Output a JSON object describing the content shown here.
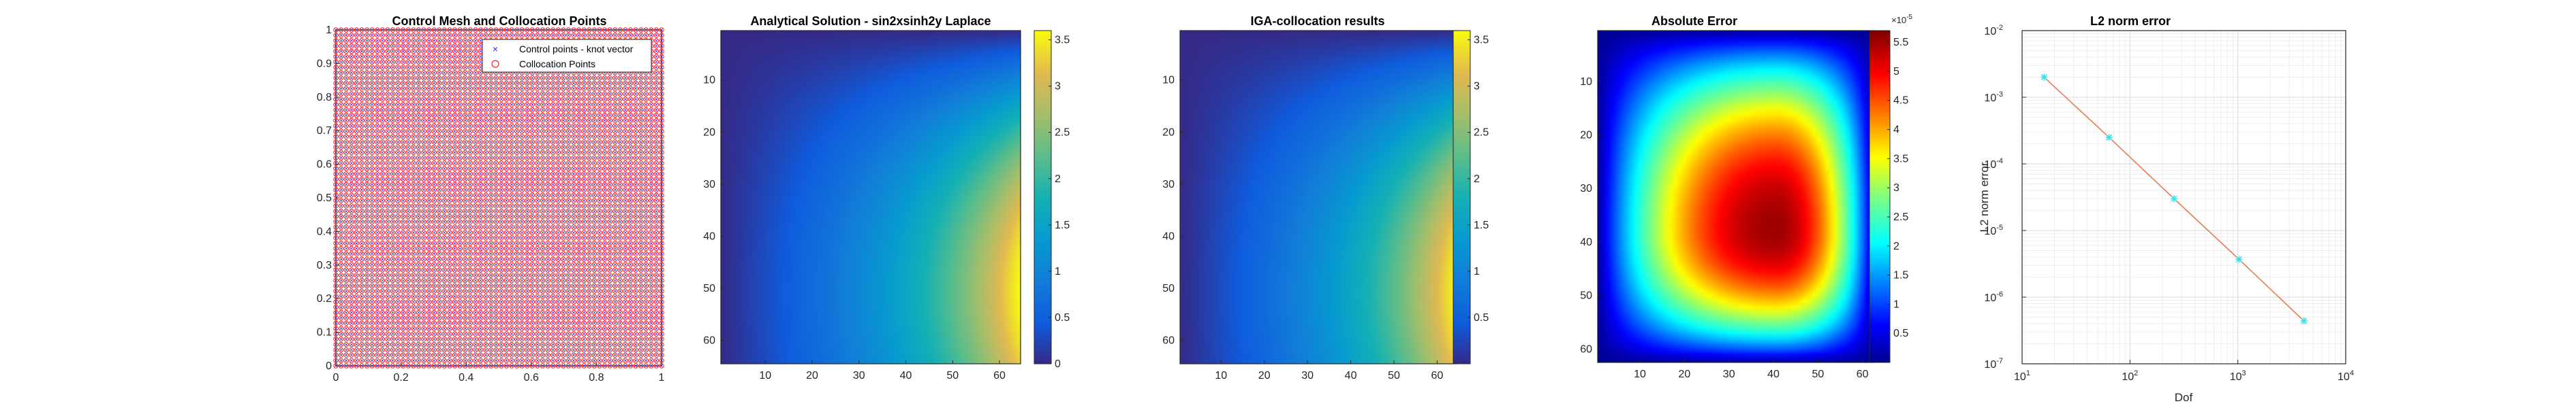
{
  "chart_data": [
    {
      "type": "scatter",
      "title": "Control Mesh and Collocation Points",
      "xlim": [
        0,
        1
      ],
      "ylim": [
        0,
        1
      ],
      "xticks": [
        "0",
        "0.2",
        "0.4",
        "0.6",
        "0.8",
        "1"
      ],
      "yticks": [
        "0",
        "0.1",
        "0.2",
        "0.3",
        "0.4",
        "0.5",
        "0.6",
        "0.7",
        "0.8",
        "0.9",
        "1"
      ],
      "grid_points_per_side": 64,
      "legend_position": "top-right",
      "series": [
        {
          "name": "Control points - knot vector",
          "marker": "x",
          "color": "#2b2bd6"
        },
        {
          "name": "Collocation Points",
          "marker": "o",
          "color": "#ff2020"
        }
      ]
    },
    {
      "type": "heatmap",
      "title": "Analytical Solution - sin2xsinh2y Laplace",
      "colormap": "parula",
      "size": 64,
      "xticks": [
        "10",
        "20",
        "30",
        "40",
        "50",
        "60"
      ],
      "yticks": [
        "10",
        "20",
        "30",
        "40",
        "50",
        "60"
      ],
      "colorbar": {
        "range": [
          0,
          3.6
        ],
        "ticks": [
          "0",
          "0.5",
          "1",
          "1.5",
          "2",
          "2.5",
          "3",
          "3.5"
        ]
      }
    },
    {
      "type": "heatmap",
      "title": "IGA-collocation results",
      "colormap": "parula",
      "size": 64,
      "xticks": [
        "10",
        "20",
        "30",
        "40",
        "50",
        "60"
      ],
      "yticks": [
        "10",
        "20",
        "30",
        "40",
        "50",
        "60"
      ],
      "colorbar": {
        "range": [
          0,
          3.6
        ],
        "ticks": [
          "0.5",
          "1",
          "1.5",
          "2",
          "2.5",
          "3",
          "3.5"
        ]
      }
    },
    {
      "type": "heatmap",
      "title": "Absolute Error",
      "colormap": "jet",
      "size": 62,
      "peak_x": 40,
      "peak_y": 37,
      "xticks": [
        "10",
        "20",
        "30",
        "40",
        "50",
        "60"
      ],
      "yticks": [
        "10",
        "20",
        "30",
        "40",
        "50",
        "60"
      ],
      "colorbar": {
        "range": [
          0,
          5.7
        ],
        "exponent_label": "×10",
        "exponent": "-5",
        "ticks": [
          "0.5",
          "1",
          "1.5",
          "2",
          "2.5",
          "3",
          "3.5",
          "4",
          "4.5",
          "5",
          "5.5"
        ]
      }
    },
    {
      "type": "line",
      "title": "L2 norm error",
      "xlabel": "Dof",
      "ylabel": "L2 norm error",
      "xscale": "log",
      "yscale": "log",
      "xlim": [
        10,
        10000
      ],
      "ylim": [
        1e-07,
        0.01
      ],
      "x_tick_exponents": [
        "1",
        "2",
        "3",
        "4"
      ],
      "y_tick_exponents": [
        "-7",
        "-6",
        "-5",
        "-4",
        "-3",
        "-2"
      ],
      "grid": true,
      "series": [
        {
          "x": [
            16,
            64,
            256,
            1024,
            4096
          ],
          "y": [
            0.002,
            0.00025,
            3e-05,
            3.7e-06,
            4.4e-07
          ],
          "line_color": "#e8734a",
          "marker_color": "#3ee0e8"
        }
      ]
    }
  ]
}
